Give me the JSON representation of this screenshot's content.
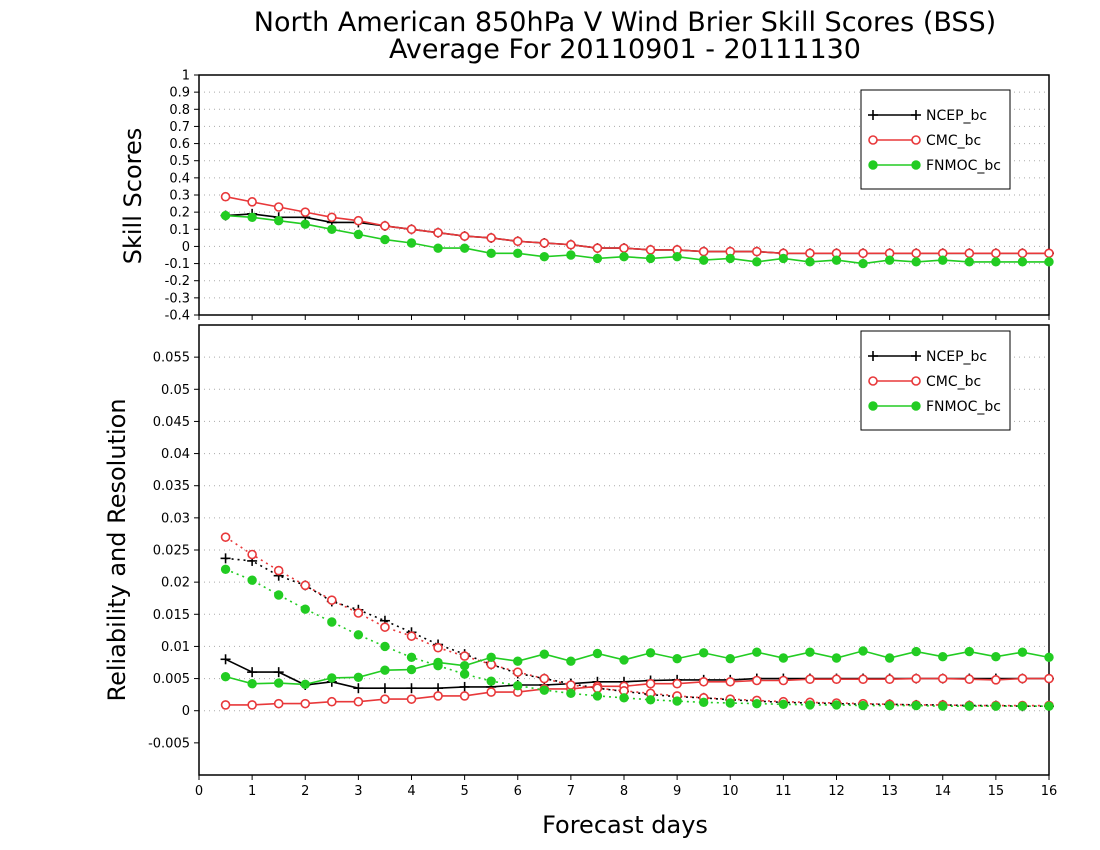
{
  "title_line1": "North American 850hPa V Wind Brier Skill Scores (BSS)",
  "title_line2": "Average For 20110901 - 20111130",
  "xlabel": "Forecast days",
  "series_legend": [
    {
      "name": "NCEP_bc",
      "color": "#000000",
      "marker": "plus"
    },
    {
      "name": "CMC_bc",
      "color": "#e8383a",
      "marker": "open-circle"
    },
    {
      "name": "FNMOC_bc",
      "color": "#22cc22",
      "marker": "filled-circle"
    }
  ],
  "chart_data": [
    {
      "type": "line",
      "title": "North American 850hPa V Wind Brier Skill Scores (BSS)\nAverage For 20110901 - 20111130",
      "xlabel": "",
      "ylabel": "Skill Scores",
      "xlim": [
        0,
        16
      ],
      "ylim": [
        -0.4,
        1
      ],
      "xticks": [
        0,
        1,
        2,
        3,
        4,
        5,
        6,
        7,
        8,
        9,
        10,
        11,
        12,
        13,
        14,
        15,
        16
      ],
      "yticks": [
        -0.4,
        -0.3,
        -0.2,
        -0.1,
        0,
        0.1,
        0.2,
        0.3,
        0.4,
        0.5,
        0.6,
        0.7,
        0.8,
        0.9,
        1
      ],
      "ytick_labels": [
        "-0.4",
        "-0.3",
        "-0.2",
        "-0.1",
        "0",
        "0.1",
        "0.2",
        "0.3",
        "0.4",
        "0.5",
        "0.6",
        "0.7",
        "0.8",
        "0.9",
        "1"
      ],
      "grid": true,
      "legend_position": "top-right",
      "x": [
        0.5,
        1,
        1.5,
        2,
        2.5,
        3,
        3.5,
        4,
        4.5,
        5,
        5.5,
        6,
        6.5,
        7,
        7.5,
        8,
        8.5,
        9,
        9.5,
        10,
        10.5,
        11,
        11.5,
        12,
        12.5,
        13,
        13.5,
        14,
        14.5,
        15,
        15.5,
        16
      ],
      "series": [
        {
          "name": "NCEP_bc",
          "style": "solid",
          "marker": "plus",
          "color": "#000000",
          "values": [
            0.18,
            0.19,
            0.17,
            0.17,
            0.14,
            0.14,
            0.12,
            0.1,
            0.08,
            0.06,
            0.05,
            0.03,
            0.02,
            0.01,
            -0.01,
            -0.01,
            -0.02,
            -0.02,
            -0.03,
            -0.03,
            -0.03,
            -0.04,
            -0.04,
            -0.04,
            -0.04,
            -0.04,
            -0.04,
            -0.04,
            -0.04,
            -0.04,
            -0.04,
            -0.04
          ]
        },
        {
          "name": "CMC_bc",
          "style": "solid",
          "marker": "open-circle",
          "color": "#e8383a",
          "values": [
            0.29,
            0.26,
            0.23,
            0.2,
            0.17,
            0.15,
            0.12,
            0.1,
            0.08,
            0.06,
            0.05,
            0.03,
            0.02,
            0.01,
            -0.01,
            -0.01,
            -0.02,
            -0.02,
            -0.03,
            -0.03,
            -0.03,
            -0.04,
            -0.04,
            -0.04,
            -0.04,
            -0.04,
            -0.04,
            -0.04,
            -0.04,
            -0.04,
            -0.04,
            -0.04
          ]
        },
        {
          "name": "FNMOC_bc",
          "style": "solid",
          "marker": "filled-circle",
          "color": "#22cc22",
          "values": [
            0.18,
            0.17,
            0.15,
            0.13,
            0.1,
            0.07,
            0.04,
            0.02,
            -0.01,
            -0.01,
            -0.04,
            -0.04,
            -0.06,
            -0.05,
            -0.07,
            -0.06,
            -0.07,
            -0.06,
            -0.08,
            -0.07,
            -0.09,
            -0.07,
            -0.09,
            -0.08,
            -0.1,
            -0.08,
            -0.09,
            -0.08,
            -0.09,
            -0.09,
            -0.09,
            -0.09
          ]
        }
      ]
    },
    {
      "type": "line",
      "xlabel": "Forecast days",
      "ylabel": "Reliability and Resolution",
      "xlim": [
        0,
        16
      ],
      "ylim": [
        -0.01,
        0.06
      ],
      "xticks": [
        0,
        1,
        2,
        3,
        4,
        5,
        6,
        7,
        8,
        9,
        10,
        11,
        12,
        13,
        14,
        15,
        16
      ],
      "yticks": [
        -0.005,
        0,
        0.005,
        0.01,
        0.015,
        0.02,
        0.025,
        0.03,
        0.035,
        0.04,
        0.045,
        0.05,
        0.055
      ],
      "ytick_labels": [
        "-0.005",
        "0",
        "0.005",
        "0.01",
        "0.015",
        "0.02",
        "0.025",
        "0.03",
        "0.035",
        "0.04",
        "0.045",
        "0.05",
        "0.055"
      ],
      "grid": true,
      "legend_position": "top-right",
      "x": [
        0.5,
        1,
        1.5,
        2,
        2.5,
        3,
        3.5,
        4,
        4.5,
        5,
        5.5,
        6,
        6.5,
        7,
        7.5,
        8,
        8.5,
        9,
        9.5,
        10,
        10.5,
        11,
        11.5,
        12,
        12.5,
        13,
        13.5,
        14,
        14.5,
        15,
        15.5,
        16
      ],
      "series": [
        {
          "name": "NCEP_bc",
          "kind": "resolution",
          "style": "solid",
          "marker": "plus",
          "color": "#000000",
          "values": [
            0.008,
            0.006,
            0.006,
            0.004,
            0.0045,
            0.0035,
            0.0035,
            0.0035,
            0.0035,
            0.0037,
            0.0037,
            0.004,
            0.004,
            0.0042,
            0.0045,
            0.0045,
            0.0047,
            0.0048,
            0.0048,
            0.0048,
            0.005,
            0.005,
            0.005,
            0.005,
            0.005,
            0.005,
            0.005,
            0.005,
            0.005,
            0.005,
            0.005,
            0.005
          ]
        },
        {
          "name": "NCEP_bc",
          "kind": "reliability",
          "style": "dotted",
          "marker": "plus",
          "color": "#000000",
          "values": [
            0.0237,
            0.0233,
            0.021,
            0.0195,
            0.017,
            0.0157,
            0.014,
            0.0122,
            0.0103,
            0.0088,
            0.0072,
            0.0058,
            0.005,
            0.0042,
            0.0035,
            0.003,
            0.0025,
            0.0022,
            0.002,
            0.0017,
            0.0015,
            0.0013,
            0.0012,
            0.0011,
            0.001,
            0.001,
            0.0009,
            0.0009,
            0.0008,
            0.0008,
            0.0007,
            0.0007
          ]
        },
        {
          "name": "CMC_bc",
          "kind": "resolution",
          "style": "solid",
          "marker": "open-circle",
          "color": "#e8383a",
          "values": [
            0.0009,
            0.0009,
            0.0011,
            0.0011,
            0.0014,
            0.0014,
            0.0018,
            0.0018,
            0.0023,
            0.0023,
            0.0029,
            0.0029,
            0.0034,
            0.0034,
            0.0038,
            0.0038,
            0.0042,
            0.0042,
            0.0045,
            0.0045,
            0.0047,
            0.0047,
            0.0049,
            0.0049,
            0.0049,
            0.0049,
            0.005,
            0.005,
            0.0049,
            0.0048,
            0.005,
            0.005
          ]
        },
        {
          "name": "CMC_bc",
          "kind": "reliability",
          "style": "dotted",
          "marker": "open-circle",
          "color": "#e8383a",
          "values": [
            0.027,
            0.0243,
            0.0218,
            0.0195,
            0.0172,
            0.0152,
            0.013,
            0.0116,
            0.0098,
            0.0085,
            0.0072,
            0.006,
            0.005,
            0.004,
            0.0035,
            0.0031,
            0.0027,
            0.0023,
            0.002,
            0.0018,
            0.0016,
            0.0014,
            0.0013,
            0.0012,
            0.0011,
            0.001,
            0.0009,
            0.0009,
            0.0008,
            0.0008,
            0.0008,
            0.0008
          ]
        },
        {
          "name": "FNMOC_bc",
          "kind": "resolution",
          "style": "solid",
          "marker": "filled-circle",
          "color": "#22cc22",
          "values": [
            0.0053,
            0.0042,
            0.0043,
            0.0041,
            0.0051,
            0.0052,
            0.0063,
            0.0064,
            0.0075,
            0.007,
            0.0083,
            0.0077,
            0.0088,
            0.0077,
            0.0089,
            0.0079,
            0.009,
            0.0081,
            0.009,
            0.0081,
            0.0091,
            0.0082,
            0.0091,
            0.0082,
            0.0093,
            0.0082,
            0.0092,
            0.0084,
            0.0092,
            0.0084,
            0.0091,
            0.0083
          ]
        },
        {
          "name": "FNMOC_bc",
          "kind": "reliability",
          "style": "dotted",
          "marker": "filled-circle",
          "color": "#22cc22",
          "values": [
            0.022,
            0.0203,
            0.018,
            0.0158,
            0.0138,
            0.0118,
            0.01,
            0.0083,
            0.007,
            0.0057,
            0.0046,
            0.0039,
            0.0032,
            0.0027,
            0.0023,
            0.002,
            0.0017,
            0.0015,
            0.0013,
            0.0012,
            0.0011,
            0.001,
            0.0009,
            0.0009,
            0.0008,
            0.0008,
            0.0008,
            0.0007,
            0.0007,
            0.0007,
            0.0007,
            0.0007
          ]
        }
      ]
    }
  ]
}
